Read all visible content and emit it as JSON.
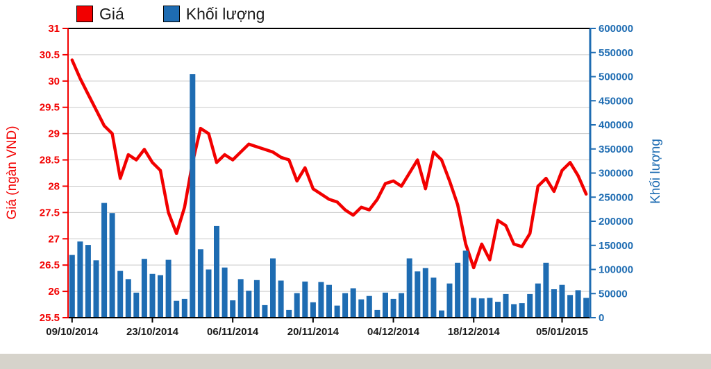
{
  "window": {
    "background": "#ffffff",
    "chrome_strip_color": "#d6d3cb"
  },
  "legend": {
    "items": [
      {
        "label": "Giá",
        "color": "#f20000"
      },
      {
        "label": "Khối lượng",
        "color": "#1e6cb2"
      }
    ]
  },
  "left_axis": {
    "title": "Giá (ngàn VND)",
    "color": "#f20000",
    "min": 25.5,
    "max": 31,
    "step": 0.5,
    "ticks": [
      "31",
      "30.5",
      "30",
      "29.5",
      "29",
      "28.5",
      "28",
      "27.5",
      "27",
      "26.5",
      "26",
      "25.5"
    ]
  },
  "right_axis": {
    "title": "Khối lượng",
    "color": "#1e6cb2",
    "min": 0,
    "max": 600000,
    "step": 50000,
    "ticks": [
      "600000",
      "550000",
      "500000",
      "450000",
      "400000",
      "350000",
      "300000",
      "250000",
      "200000",
      "150000",
      "100000",
      "50000",
      "0"
    ]
  },
  "x_axis": {
    "color": "#000000",
    "tick_labels": [
      "09/10/2014",
      "23/10/2014",
      "06/11/2014",
      "20/11/2014",
      "04/12/2014",
      "18/12/2014",
      "05/01/2015"
    ],
    "tick_indices": [
      0,
      10,
      20,
      30,
      40,
      50,
      61
    ]
  },
  "chart_data": {
    "type": "combo",
    "grid": true,
    "gridline_color": "#c9c9c9",
    "plot_background": "#ffffff",
    "left_ylim": [
      25.5,
      31
    ],
    "right_ylim": [
      0,
      600000
    ],
    "x": [
      "09/10/2014",
      "10/10/2014",
      "13/10/2014",
      "14/10/2014",
      "15/10/2014",
      "16/10/2014",
      "17/10/2014",
      "20/10/2014",
      "21/10/2014",
      "22/10/2014",
      "23/10/2014",
      "24/10/2014",
      "27/10/2014",
      "28/10/2014",
      "29/10/2014",
      "30/10/2014",
      "31/10/2014",
      "03/11/2014",
      "04/11/2014",
      "05/11/2014",
      "06/11/2014",
      "07/11/2014",
      "10/11/2014",
      "11/11/2014",
      "12/11/2014",
      "13/11/2014",
      "14/11/2014",
      "17/11/2014",
      "18/11/2014",
      "19/11/2014",
      "20/11/2014",
      "21/11/2014",
      "24/11/2014",
      "25/11/2014",
      "26/11/2014",
      "27/11/2014",
      "28/11/2014",
      "01/12/2014",
      "02/12/2014",
      "03/12/2014",
      "04/12/2014",
      "05/12/2014",
      "08/12/2014",
      "09/12/2014",
      "10/12/2014",
      "11/12/2014",
      "12/12/2014",
      "15/12/2014",
      "16/12/2014",
      "17/12/2014",
      "18/12/2014",
      "19/12/2014",
      "22/12/2014",
      "23/12/2014",
      "24/12/2014",
      "25/12/2014",
      "26/12/2014",
      "29/12/2014",
      "30/12/2014",
      "31/12/2014",
      "02/01/2015",
      "05/01/2015",
      "06/01/2015",
      "07/01/2015",
      "08/01/2015"
    ],
    "series": [
      {
        "name": "Giá",
        "type": "line",
        "axis": "left",
        "color": "#f20000",
        "stroke_width": 4.5,
        "values": [
          30.4,
          30.05,
          29.75,
          29.45,
          29.15,
          29.0,
          28.15,
          28.6,
          28.5,
          28.7,
          28.45,
          28.3,
          27.5,
          27.1,
          27.6,
          28.45,
          29.1,
          29.0,
          28.45,
          28.6,
          28.5,
          28.65,
          28.8,
          28.75,
          28.7,
          28.65,
          28.55,
          28.5,
          28.1,
          28.35,
          27.95,
          27.85,
          27.75,
          27.7,
          27.55,
          27.45,
          27.6,
          27.55,
          27.75,
          28.05,
          28.1,
          28.0,
          28.25,
          28.5,
          27.95,
          28.65,
          28.5,
          28.1,
          27.65,
          26.9,
          26.45,
          26.9,
          26.6,
          27.35,
          27.25,
          26.9,
          26.85,
          27.1,
          28.0,
          28.15,
          27.9,
          28.3,
          28.45,
          28.2,
          27.85
        ]
      },
      {
        "name": "Khối lượng",
        "type": "bar",
        "axis": "right",
        "color": "#1e6cb2",
        "values": [
          130000,
          158000,
          151000,
          119000,
          238000,
          217000,
          97000,
          80000,
          52000,
          122000,
          91000,
          88000,
          120000,
          35000,
          39000,
          505000,
          142000,
          100000,
          190000,
          104000,
          36000,
          80000,
          56000,
          78000,
          26000,
          123000,
          77000,
          16000,
          51000,
          75000,
          32000,
          74000,
          68000,
          25000,
          51000,
          61000,
          38000,
          45000,
          16000,
          52000,
          39000,
          51000,
          123000,
          96000,
          103000,
          83000,
          15000,
          71000,
          114000,
          139000,
          41000,
          40000,
          41000,
          33000,
          49000,
          28000,
          30000,
          49000,
          71000,
          114000,
          59000,
          68000,
          47000,
          57000,
          41000
        ]
      }
    ]
  }
}
